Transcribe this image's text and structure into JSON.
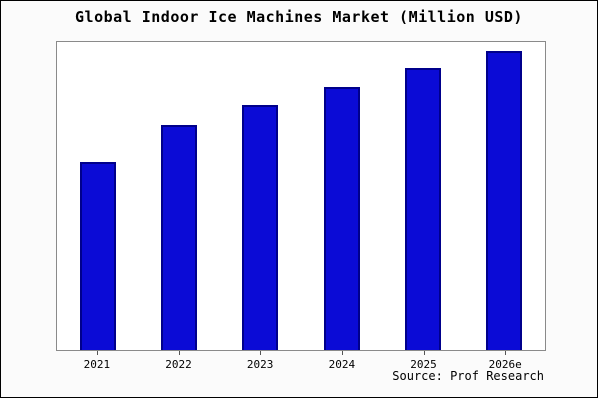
{
  "title": "Global Indoor Ice Machines Market (Million USD)",
  "source": "Source: Prof Research",
  "colors": {
    "bar_fill": "#0b0bd6",
    "bar_border": "#00008b",
    "plot_background": "#ffffff",
    "plot_border": "#8a8a8a",
    "frame_background": "#fbfbfb",
    "frame_border": "#000000"
  },
  "chart_data": {
    "type": "bar",
    "title": "Global Indoor Ice Machines Market (Million USD)",
    "categories": [
      "2021",
      "2022",
      "2023",
      "2024",
      "2025",
      "2026e"
    ],
    "values": [
      188,
      225,
      245,
      263,
      282,
      299
    ],
    "values_note": "no y-axis scale shown; values are estimated relative bar heights",
    "ylim": [
      0,
      308
    ],
    "xlabel": "",
    "ylabel": "",
    "grid": false,
    "legend": false,
    "source_annotation": "Source: Prof Research"
  }
}
